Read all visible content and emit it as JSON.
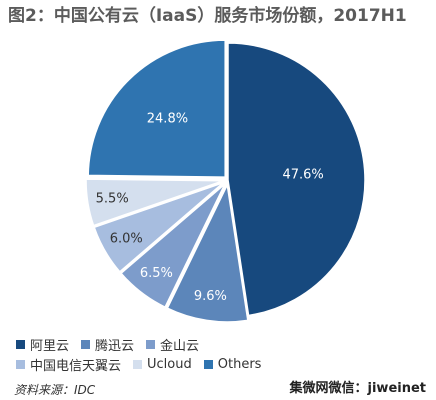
{
  "chart_data": {
    "type": "pie",
    "title": "图2：中国公有云（IaaS）服务市场份额，2017H1",
    "categories": [
      "阿里云",
      "腾迅云",
      "金山云",
      "中国电信天翼云",
      "Ucloud",
      "Others"
    ],
    "values": [
      47.6,
      9.6,
      6.5,
      6.0,
      5.5,
      24.8
    ],
    "value_labels": [
      "47.6%",
      "9.6%",
      "6.5%",
      "6.0%",
      "5.5%",
      "24.8%"
    ],
    "colors": [
      "#17497e",
      "#5c86ba",
      "#7d9ccb",
      "#a7bddf",
      "#d4dfee",
      "#2f74b0"
    ],
    "start": "12 o'clock, clockwise",
    "legend_position": "bottom"
  },
  "source": "资料来源：IDC",
  "watermark": "集微网微信：jiweinet"
}
